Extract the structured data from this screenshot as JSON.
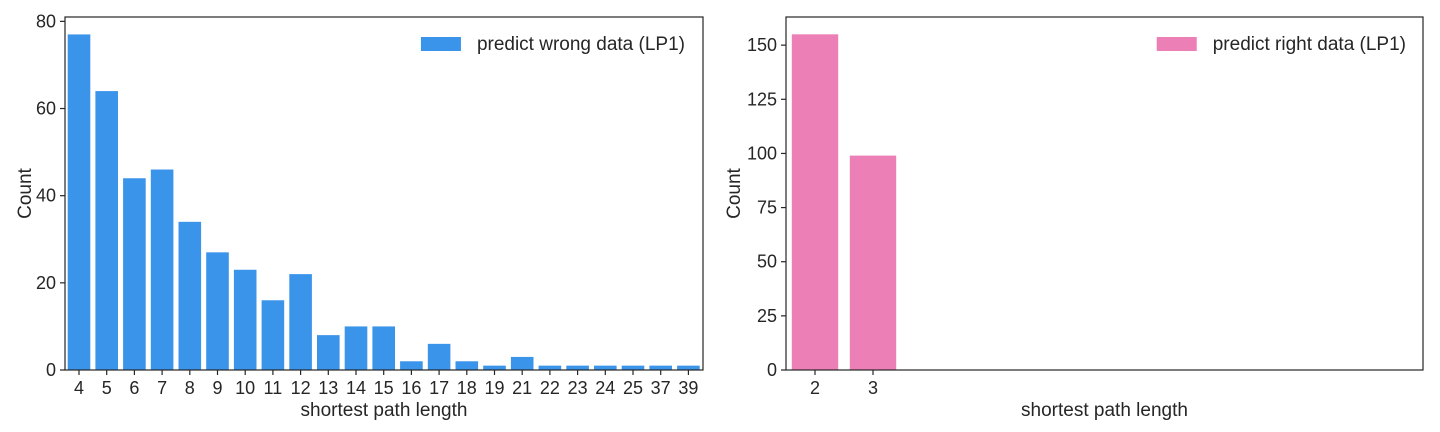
{
  "chart_data": [
    {
      "type": "bar",
      "xlabel": "shortest path length",
      "ylabel": "Count",
      "ylim": [
        0,
        81
      ],
      "yticks": [
        0,
        20,
        40,
        60,
        80
      ],
      "grid": false,
      "legend_position": "top-right",
      "categories": [
        "4",
        "5",
        "6",
        "7",
        "8",
        "9",
        "10",
        "11",
        "12",
        "13",
        "14",
        "15",
        "16",
        "17",
        "18",
        "19",
        "21",
        "22",
        "23",
        "24",
        "25",
        "37",
        "39"
      ],
      "series": [
        {
          "name": "predict wrong data (LP1)",
          "color": "#3a94ea",
          "values": [
            77,
            64,
            44,
            46,
            34,
            27,
            23,
            16,
            22,
            8,
            10,
            10,
            2,
            6,
            2,
            1,
            3,
            1,
            1,
            1,
            1,
            1,
            1
          ]
        }
      ]
    },
    {
      "type": "bar",
      "xlabel": "shortest path length",
      "ylabel": "Count",
      "ylim": [
        0,
        163
      ],
      "yticks": [
        0,
        25,
        50,
        75,
        100,
        125,
        150
      ],
      "grid": false,
      "legend_position": "top-right",
      "categories": [
        "2",
        "3"
      ],
      "series": [
        {
          "name": "predict right data (LP1)",
          "color": "#ec7fb6",
          "values": [
            155,
            99
          ]
        }
      ]
    }
  ]
}
